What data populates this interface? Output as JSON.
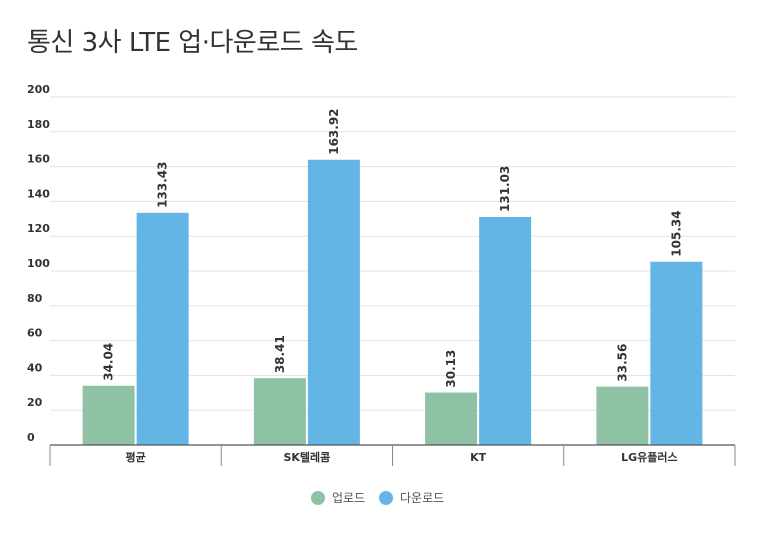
{
  "chart_data": {
    "type": "bar",
    "title": "통신 3사 LTE 업·다운로드 속도",
    "xlabel": "",
    "ylabel": "",
    "ylim": [
      0,
      200
    ],
    "yticks": [
      0,
      20,
      40,
      60,
      80,
      100,
      120,
      140,
      160,
      180,
      200
    ],
    "grid": true,
    "legend_position": "bottom-center",
    "categories": [
      "평균",
      "SK텔레콤",
      "KT",
      "LG유플러스"
    ],
    "series": [
      {
        "name": "업로드",
        "color": "#8fc1a5",
        "values": [
          34.04,
          38.41,
          30.13,
          33.56
        ]
      },
      {
        "name": "다운로드",
        "color": "#62b5e4",
        "values": [
          133.43,
          163.92,
          131.03,
          105.34
        ]
      }
    ],
    "value_labels": [
      [
        "34.04",
        "38.41",
        "30.13",
        "33.56"
      ],
      [
        "133.43",
        "163.92",
        "131.03",
        "105.34"
      ]
    ]
  }
}
